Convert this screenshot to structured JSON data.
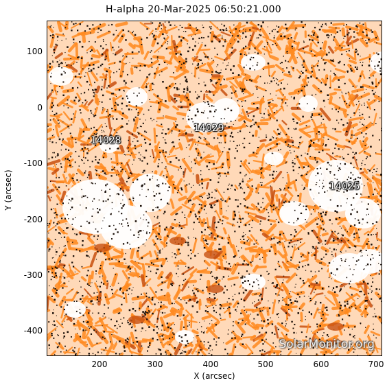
{
  "title": "H-alpha 20-Mar-2025 06:50:21.000",
  "xlabel": "X (arcsec)",
  "ylabel": "Y (arcsec)",
  "x_ticks": [
    "200",
    "300",
    "400",
    "500",
    "600",
    "700"
  ],
  "y_ticks": [
    "100",
    "0",
    "-100",
    "-200",
    "-300",
    "-400"
  ],
  "regions": [
    "14028",
    "14029",
    "14025"
  ],
  "watermark": "SolarMonitor.org",
  "colors": {
    "orange": "#ff8a1f",
    "dark_orange": "#c85010",
    "white_plage": "#ffffff",
    "black_specks": "#1a0f08"
  }
}
